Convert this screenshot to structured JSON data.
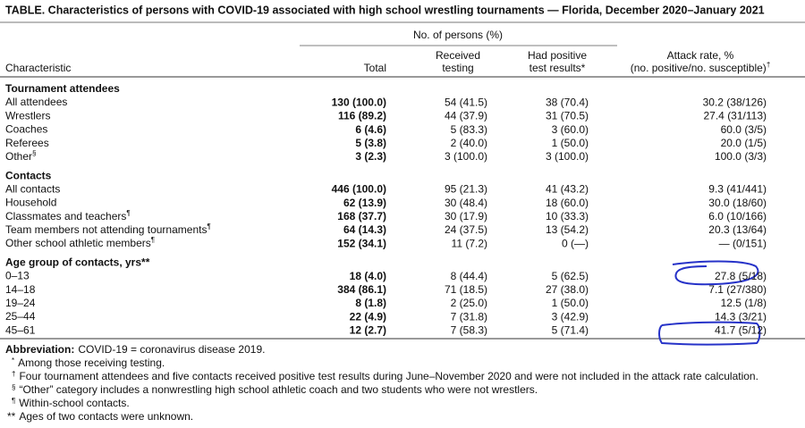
{
  "title": "TABLE. Characteristics of persons with COVID-19 associated with high school wrestling tournaments — Florida, December 2020–January 2021",
  "header": {
    "group": "No. of persons (%)",
    "columns": [
      {
        "lines": [
          "Characteristic"
        ]
      },
      {
        "lines": [
          "Total"
        ]
      },
      {
        "lines": [
          "Received",
          "testing"
        ]
      },
      {
        "lines": [
          "Had positive",
          "test results*"
        ]
      },
      {
        "lines": [
          "Attack rate, %",
          "(no. positive/no. susceptible)"
        ],
        "sup": "†"
      }
    ]
  },
  "sections": [
    {
      "heading": "Tournament attendees",
      "rows": [
        {
          "cells": [
            "All attendees",
            "130 (100.0)",
            "54 (41.5)",
            "38 (70.4)",
            "30.2 (38/126)"
          ]
        },
        {
          "cells": [
            "Wrestlers",
            "116 (89.2)",
            "44 (37.9)",
            "31 (70.5)",
            "27.4 (31/113)"
          ]
        },
        {
          "cells": [
            "Coaches",
            "6 (4.6)",
            "5 (83.3)",
            "3 (60.0)",
            "60.0 (3/5)"
          ]
        },
        {
          "cells": [
            "Referees",
            "5 (3.8)",
            "2 (40.0)",
            "1 (50.0)",
            "20.0 (1/5)"
          ]
        },
        {
          "cells": [
            "Other",
            "3 (2.3)",
            "3 (100.0)",
            "3 (100.0)",
            "100.0 (3/3)"
          ],
          "sup": "§"
        }
      ]
    },
    {
      "heading": "Contacts",
      "rows": [
        {
          "cells": [
            "All contacts",
            "446 (100.0)",
            "95 (21.3)",
            "41 (43.2)",
            "9.3 (41/441)"
          ]
        },
        {
          "cells": [
            "Household",
            "62 (13.9)",
            "30 (48.4)",
            "18 (60.0)",
            "30.0 (18/60)"
          ]
        },
        {
          "cells": [
            "Classmates and teachers",
            "168 (37.7)",
            "30 (17.9)",
            "10 (33.3)",
            "6.0 (10/166)"
          ],
          "sup": "¶"
        },
        {
          "cells": [
            "Team members not attending tournaments",
            "64 (14.3)",
            "24 (37.5)",
            "13 (54.2)",
            "20.3 (13/64)"
          ],
          "sup": "¶"
        },
        {
          "cells": [
            "Other school athletic members",
            "152 (34.1)",
            "11 (7.2)",
            "0 (—)",
            "— (0/151)"
          ],
          "sup": "¶"
        }
      ]
    },
    {
      "heading": "Age group of contacts, yrs**",
      "rows": [
        {
          "cells": [
            "0–13",
            "18 (4.0)",
            "8 (44.4)",
            "5 (62.5)",
            "27.8 (5/18)"
          ]
        },
        {
          "cells": [
            "14–18",
            "384 (86.1)",
            "71 (18.5)",
            "27 (38.0)",
            "7.1 (27/380)"
          ]
        },
        {
          "cells": [
            "19–24",
            "8 (1.8)",
            "2 (25.0)",
            "1 (50.0)",
            "12.5 (1/8)"
          ]
        },
        {
          "cells": [
            "25–44",
            "22 (4.9)",
            "7 (31.8)",
            "3 (42.9)",
            "14.3 (3/21)"
          ]
        },
        {
          "cells": [
            "45–61",
            "12 (2.7)",
            "7 (58.3)",
            "5 (71.4)",
            "41.7 (5/12)"
          ]
        }
      ]
    }
  ],
  "footnotes": {
    "abbreviation": {
      "label": "Abbreviation:",
      "text": "COVID-19 = coronavirus disease 2019."
    },
    "notes": [
      {
        "mark": "*",
        "text": "Among those receiving testing."
      },
      {
        "mark": "†",
        "text": "Four tournament attendees and five contacts received positive test results during June–November 2020 and were not included in the attack rate calculation."
      },
      {
        "mark": "§",
        "text": "“Other” category includes a nonwrestling high school athletic coach and two students who were not wrestlers."
      },
      {
        "mark": "¶",
        "text": "Within-school contacts."
      },
      {
        "mark": "**",
        "text": "Ages of two contacts were unknown."
      }
    ]
  }
}
